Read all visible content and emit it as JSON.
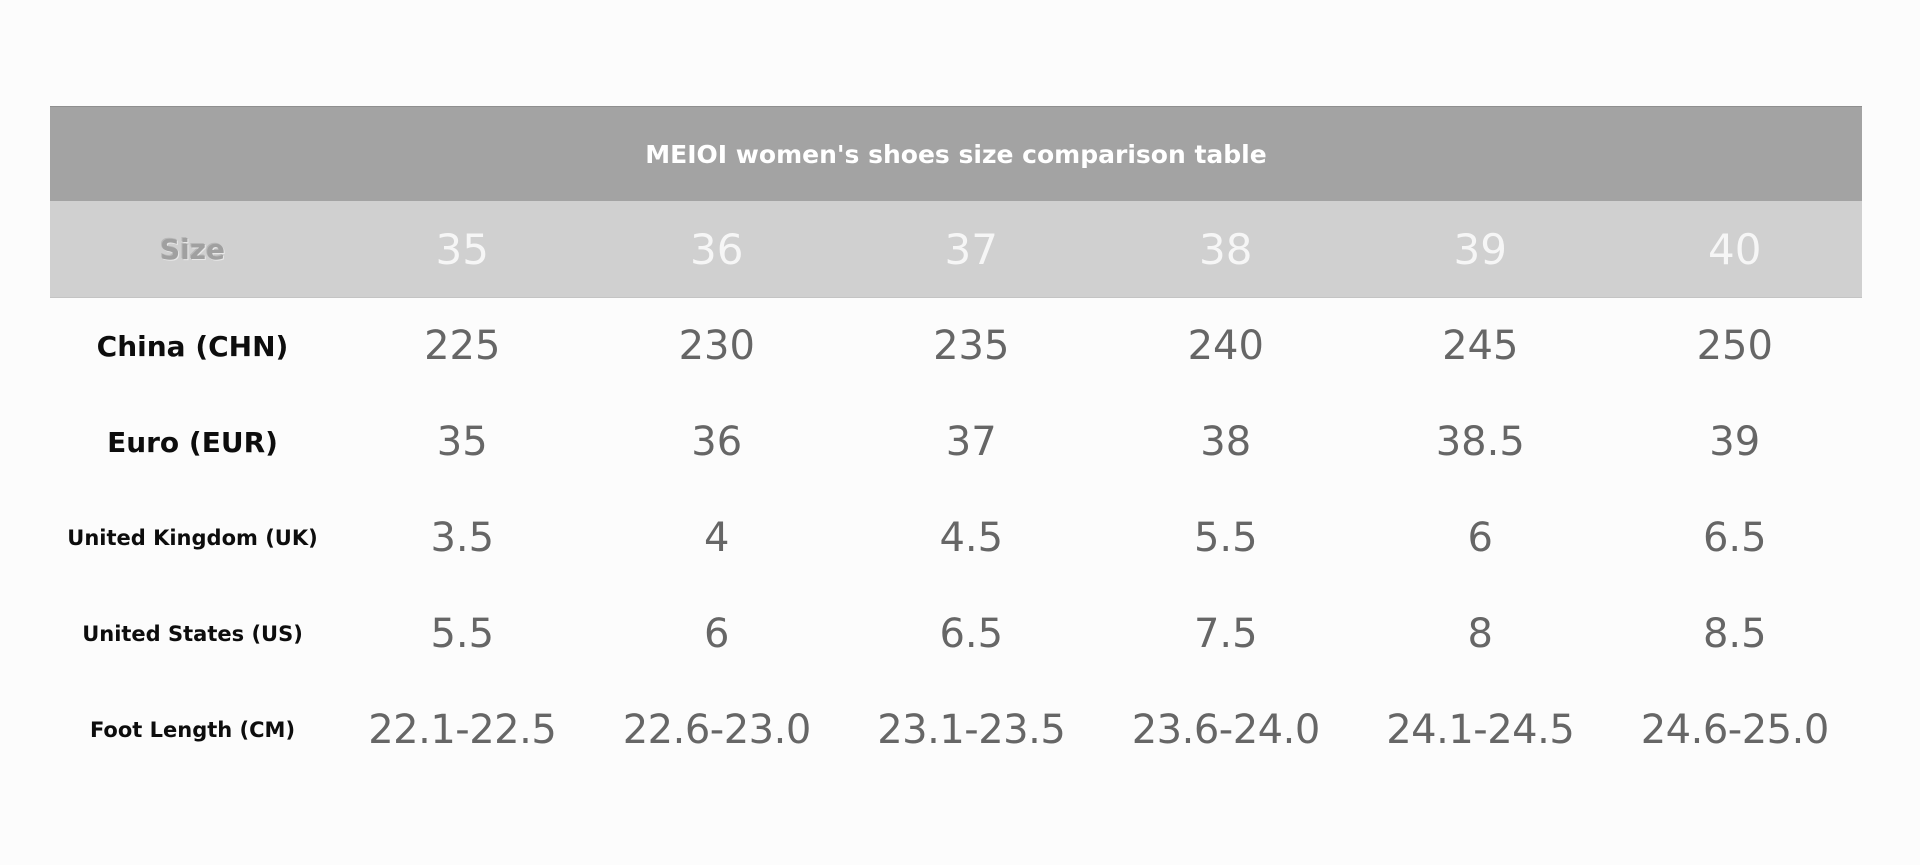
{
  "table": {
    "title": "MEIOI women's shoes size comparison table",
    "header": {
      "label": "Size",
      "values": [
        "35",
        "36",
        "37",
        "38",
        "39",
        "40"
      ]
    },
    "rows": [
      {
        "label": "China (CHN)",
        "values": [
          "225",
          "230",
          "235",
          "240",
          "245",
          "250"
        ]
      },
      {
        "label": "Euro (EUR)",
        "values": [
          "35",
          "36",
          "37",
          "38",
          "38.5",
          "39"
        ]
      },
      {
        "label": "United Kingdom (UK)",
        "values": [
          "3.5",
          "4",
          "4.5",
          "5.5",
          "6",
          "6.5"
        ]
      },
      {
        "label": "United States (US)",
        "values": [
          "5.5",
          "6",
          "6.5",
          "7.5",
          "8",
          "8.5"
        ]
      },
      {
        "label": "Foot Length (CM)",
        "values": [
          "22.1-22.5",
          "22.6-23.0",
          "23.1-23.5",
          "23.6-24.0",
          "24.1-24.5",
          "24.6-25.0"
        ]
      }
    ]
  }
}
